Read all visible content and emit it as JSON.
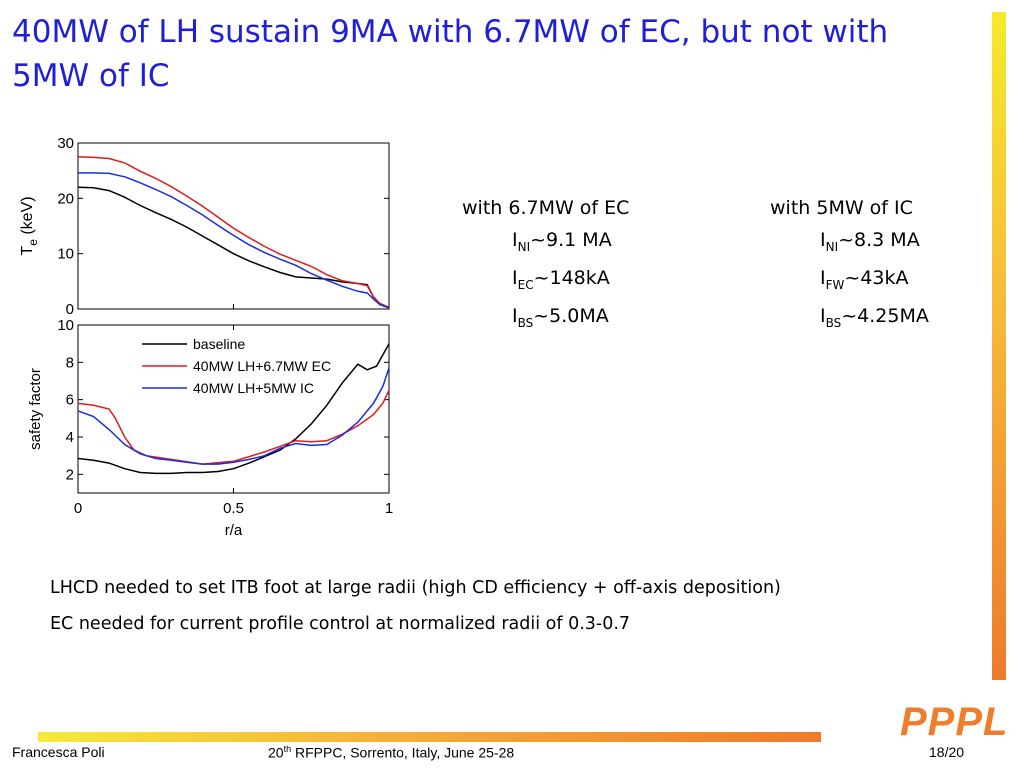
{
  "slide": {
    "title": "40MW of LH sustain 9MA with 6.7MW of EC, but not with 5MW of IC",
    "accent_color": "#1f1fd6",
    "brand_color": "#ef7d2b",
    "logo_text": "PPPL"
  },
  "columns": [
    {
      "heading": "with 6.7MW of EC",
      "rows": [
        {
          "symbol": "I",
          "sub": "NI",
          "value": "~9.1 MA"
        },
        {
          "symbol": "I",
          "sub": "EC",
          "value": "~148kA"
        },
        {
          "symbol": "I",
          "sub": "BS",
          "value": "~5.0MA"
        }
      ]
    },
    {
      "heading": "with 5MW of IC",
      "rows": [
        {
          "symbol": "I",
          "sub": "NI",
          "value": "~8.3 MA"
        },
        {
          "symbol": "I",
          "sub": "FW",
          "value": "~43kA"
        },
        {
          "symbol": "I",
          "sub": "BS",
          "value": "~4.25MA"
        }
      ]
    }
  ],
  "bullets": [
    "LHCD needed to set ITB foot at large radii (high CD efficiency + off-axis deposition)",
    "EC needed for current profile control at normalized radii of 0.3-0.7"
  ],
  "footer": {
    "author": "Francesca Poli",
    "conf_ordinal": "20",
    "conf_sup": "th",
    "conf_rest": " RFPPC, Sorrento, Italy, June 25-28",
    "page": "18/20"
  },
  "chart_data": [
    {
      "type": "line",
      "panel": "top",
      "xlabel": "",
      "ylabel_main": "T",
      "ylabel_sub": "e",
      "ylabel_unit": "(keV)",
      "xlim": [
        0,
        1
      ],
      "ylim": [
        0,
        30
      ],
      "yticks": [
        "30",
        "20",
        "10",
        "0"
      ],
      "grid": false,
      "series": [
        {
          "name": "baseline",
          "color": "#000000",
          "points": [
            [
              0,
              22
            ],
            [
              0.05,
              21.9
            ],
            [
              0.1,
              21.4
            ],
            [
              0.15,
              20.2
            ],
            [
              0.2,
              18.7
            ],
            [
              0.25,
              17.4
            ],
            [
              0.3,
              16.2
            ],
            [
              0.35,
              14.8
            ],
            [
              0.4,
              13.2
            ],
            [
              0.45,
              11.6
            ],
            [
              0.5,
              10.0
            ],
            [
              0.55,
              8.7
            ],
            [
              0.6,
              7.6
            ],
            [
              0.65,
              6.6
            ],
            [
              0.7,
              5.8
            ],
            [
              0.75,
              5.6
            ],
            [
              0.8,
              5.4
            ],
            [
              0.85,
              4.9
            ],
            [
              0.9,
              4.6
            ],
            [
              0.93,
              4.4
            ],
            [
              0.95,
              2.2
            ],
            [
              0.97,
              1.0
            ],
            [
              1.0,
              0.3
            ]
          ]
        },
        {
          "name": "40MW LH+6.7MW EC",
          "color": "#e01b1b",
          "points": [
            [
              0,
              27.5
            ],
            [
              0.05,
              27.4
            ],
            [
              0.1,
              27.2
            ],
            [
              0.15,
              26.4
            ],
            [
              0.2,
              24.9
            ],
            [
              0.25,
              23.6
            ],
            [
              0.3,
              22.1
            ],
            [
              0.35,
              20.4
            ],
            [
              0.4,
              18.6
            ],
            [
              0.45,
              16.6
            ],
            [
              0.5,
              14.6
            ],
            [
              0.55,
              12.9
            ],
            [
              0.6,
              11.3
            ],
            [
              0.65,
              9.9
            ],
            [
              0.7,
              8.8
            ],
            [
              0.75,
              7.7
            ],
            [
              0.8,
              6.2
            ],
            [
              0.85,
              5.1
            ],
            [
              0.9,
              4.6
            ],
            [
              0.93,
              4.2
            ],
            [
              0.95,
              2.2
            ],
            [
              0.97,
              1.0
            ],
            [
              1.0,
              0.3
            ]
          ]
        },
        {
          "name": "40MW LH+5MW IC",
          "color": "#1b2de0",
          "points": [
            [
              0,
              24.6
            ],
            [
              0.05,
              24.6
            ],
            [
              0.1,
              24.5
            ],
            [
              0.15,
              23.9
            ],
            [
              0.2,
              22.8
            ],
            [
              0.25,
              21.6
            ],
            [
              0.3,
              20.3
            ],
            [
              0.35,
              18.7
            ],
            [
              0.4,
              17.0
            ],
            [
              0.45,
              15.1
            ],
            [
              0.5,
              13.3
            ],
            [
              0.55,
              11.6
            ],
            [
              0.6,
              10.2
            ],
            [
              0.65,
              9.0
            ],
            [
              0.7,
              7.9
            ],
            [
              0.75,
              6.4
            ],
            [
              0.8,
              5.2
            ],
            [
              0.85,
              4.1
            ],
            [
              0.9,
              3.2
            ],
            [
              0.93,
              2.9
            ],
            [
              0.95,
              1.8
            ],
            [
              0.97,
              0.8
            ],
            [
              1.0,
              0.2
            ]
          ]
        }
      ]
    },
    {
      "type": "line",
      "panel": "bottom",
      "xlabel": "r/a",
      "ylabel": "safety factor",
      "xlim": [
        0,
        1
      ],
      "ylim": [
        1,
        10
      ],
      "xticks": [
        {
          "v": 0,
          "label": "0"
        },
        {
          "v": 0.5,
          "label": "0.5"
        },
        {
          "v": 1,
          "label": "1"
        }
      ],
      "yticks": [
        {
          "v": 10,
          "label": "10"
        },
        {
          "v": 8,
          "label": "8"
        },
        {
          "v": 6,
          "label": "6"
        },
        {
          "v": 4,
          "label": "4"
        },
        {
          "v": 2,
          "label": "2"
        }
      ],
      "grid": false,
      "legend_placement": "top-center",
      "series": [
        {
          "name": "baseline",
          "color": "#000000",
          "points": [
            [
              0,
              2.85
            ],
            [
              0.05,
              2.75
            ],
            [
              0.1,
              2.6
            ],
            [
              0.15,
              2.3
            ],
            [
              0.2,
              2.1
            ],
            [
              0.25,
              2.05
            ],
            [
              0.3,
              2.05
            ],
            [
              0.35,
              2.1
            ],
            [
              0.4,
              2.1
            ],
            [
              0.45,
              2.15
            ],
            [
              0.5,
              2.3
            ],
            [
              0.55,
              2.6
            ],
            [
              0.6,
              2.95
            ],
            [
              0.65,
              3.3
            ],
            [
              0.7,
              3.9
            ],
            [
              0.75,
              4.7
            ],
            [
              0.8,
              5.7
            ],
            [
              0.85,
              6.9
            ],
            [
              0.9,
              7.9
            ],
            [
              0.93,
              7.6
            ],
            [
              0.96,
              7.8
            ],
            [
              1.0,
              9.0
            ]
          ]
        },
        {
          "name": "40MW LH+6.7MW EC",
          "color": "#e01b1b",
          "points": [
            [
              0,
              5.8
            ],
            [
              0.05,
              5.7
            ],
            [
              0.1,
              5.5
            ],
            [
              0.12,
              5.0
            ],
            [
              0.15,
              4.0
            ],
            [
              0.18,
              3.3
            ],
            [
              0.22,
              3.0
            ],
            [
              0.3,
              2.8
            ],
            [
              0.4,
              2.55
            ],
            [
              0.5,
              2.7
            ],
            [
              0.55,
              2.95
            ],
            [
              0.6,
              3.2
            ],
            [
              0.65,
              3.5
            ],
            [
              0.7,
              3.8
            ],
            [
              0.75,
              3.75
            ],
            [
              0.8,
              3.8
            ],
            [
              0.85,
              4.15
            ],
            [
              0.9,
              4.6
            ],
            [
              0.95,
              5.2
            ],
            [
              0.98,
              5.8
            ],
            [
              1.0,
              6.5
            ]
          ]
        },
        {
          "name": "40MW LH+5MW IC",
          "color": "#1b2de0",
          "points": [
            [
              0,
              5.4
            ],
            [
              0.05,
              5.1
            ],
            [
              0.1,
              4.4
            ],
            [
              0.15,
              3.6
            ],
            [
              0.2,
              3.1
            ],
            [
              0.25,
              2.85
            ],
            [
              0.3,
              2.75
            ],
            [
              0.35,
              2.65
            ],
            [
              0.4,
              2.55
            ],
            [
              0.45,
              2.55
            ],
            [
              0.5,
              2.65
            ],
            [
              0.55,
              2.8
            ],
            [
              0.6,
              3.0
            ],
            [
              0.65,
              3.4
            ],
            [
              0.7,
              3.65
            ],
            [
              0.75,
              3.55
            ],
            [
              0.8,
              3.6
            ],
            [
              0.85,
              4.1
            ],
            [
              0.9,
              4.8
            ],
            [
              0.95,
              5.8
            ],
            [
              0.98,
              6.7
            ],
            [
              1.0,
              7.7
            ]
          ]
        }
      ]
    }
  ]
}
